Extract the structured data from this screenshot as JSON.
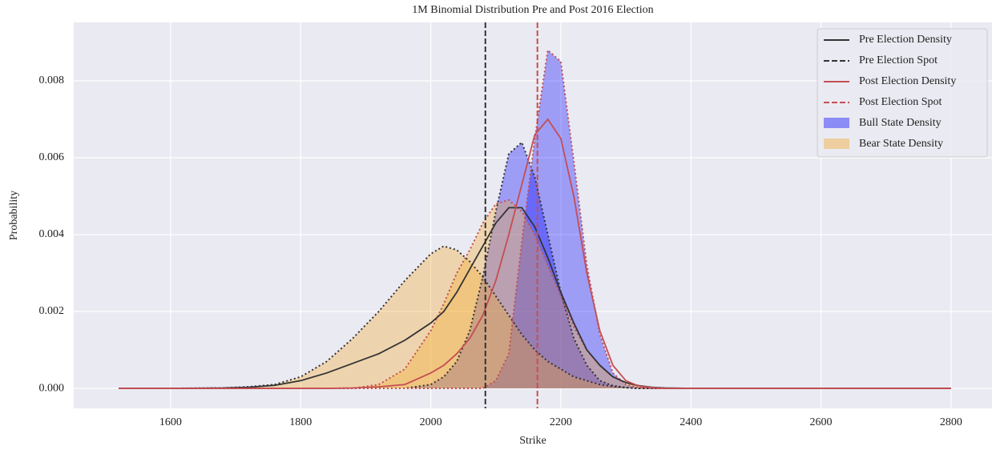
{
  "chart_data": {
    "type": "line",
    "title": "1M Binomial Distribution Pre and Post 2016 Election",
    "x_label": "Strike",
    "y_label": "Probability",
    "x": [
      1520,
      1600,
      1680,
      1720,
      1760,
      1800,
      1840,
      1880,
      1920,
      1960,
      2000,
      2020,
      2040,
      2060,
      2080,
      2100,
      2120,
      2140,
      2160,
      2180,
      2200,
      2220,
      2240,
      2260,
      2280,
      2300,
      2320,
      2340,
      2360,
      2400,
      2500,
      2600,
      2700,
      2800
    ],
    "xlim": [
      1451,
      2863
    ],
    "ylim": [
      -0.00052,
      0.00952
    ],
    "xticks": [
      1600,
      1800,
      2000,
      2200,
      2400,
      2600,
      2800
    ],
    "yticks": [
      {
        "value": 0,
        "label": "0.000"
      },
      {
        "value": 0.002,
        "label": "0.002"
      },
      {
        "value": 0.004,
        "label": "0.004"
      },
      {
        "value": 0.006,
        "label": "0.006"
      },
      {
        "value": 0.008,
        "label": "0.008"
      }
    ],
    "grid": true,
    "legend": "upper right",
    "series": [
      {
        "name": "Pre Election Density",
        "color": "#333333",
        "values": [
          0,
          0,
          1e-05,
          3e-05,
          8e-05,
          0.0002,
          0.0004,
          0.00065,
          0.0009,
          0.00125,
          0.0017,
          0.002,
          0.0025,
          0.0031,
          0.0037,
          0.0043,
          0.0047,
          0.0047,
          0.0042,
          0.0034,
          0.0025,
          0.0017,
          0.001,
          0.0006,
          0.0003,
          0.00015,
          7e-05,
          3e-05,
          1e-05,
          0,
          0,
          0,
          0,
          0
        ]
      },
      {
        "name": "Post Election Density",
        "color": "#c44e52",
        "values": [
          0,
          0,
          0,
          0,
          0,
          0,
          0,
          1e-05,
          4e-05,
          0.0001,
          0.0004,
          0.0006,
          0.0009,
          0.0013,
          0.0019,
          0.0028,
          0.004,
          0.0053,
          0.0066,
          0.007,
          0.0065,
          0.005,
          0.003,
          0.0015,
          0.0006,
          0.0002,
          6e-05,
          2e-05,
          0,
          0,
          0,
          0,
          0,
          0
        ]
      }
    ],
    "spots": [
      {
        "name": "Pre Election Spot",
        "color": "#333333",
        "x": 2084
      },
      {
        "name": "Post Election Spot",
        "color": "#c44e52",
        "x": 2164
      }
    ],
    "areas": [
      {
        "name": "Bull State Density",
        "color": "#0000ff",
        "pre": [
          0,
          0,
          0,
          0,
          0,
          0,
          0,
          0,
          0,
          0,
          0.0001,
          0.0003,
          0.0007,
          0.0015,
          0.0029,
          0.0046,
          0.0061,
          0.0064,
          0.0055,
          0.004,
          0.0025,
          0.0013,
          0.0006,
          0.0002,
          7e-05,
          2e-05,
          0,
          0,
          0,
          0,
          0,
          0,
          0,
          0
        ],
        "post": [
          0,
          0,
          0,
          0,
          0,
          0,
          0,
          0,
          0,
          0,
          0,
          0,
          0,
          0,
          0,
          0.0002,
          0.0009,
          0.0038,
          0.0065,
          0.0088,
          0.0085,
          0.0059,
          0.0032,
          0.0014,
          0.0004,
          0.0001,
          2e-05,
          0,
          0,
          0,
          0,
          0,
          0,
          0
        ]
      },
      {
        "name": "Bear State Density",
        "color": "#f5a623",
        "pre": [
          0,
          0,
          1e-05,
          4e-05,
          0.0001,
          0.0003,
          0.0007,
          0.0013,
          0.002,
          0.0028,
          0.0035,
          0.0037,
          0.0036,
          0.0033,
          0.0029,
          0.0024,
          0.0019,
          0.0014,
          0.001,
          0.0007,
          0.0005,
          0.0003,
          0.0002,
          0.0001,
          5e-05,
          2e-05,
          0,
          0,
          0,
          0,
          0,
          0,
          0,
          0
        ],
        "post": [
          0,
          0,
          0,
          0,
          0,
          0,
          0,
          0,
          0.0001,
          0.0005,
          0.0015,
          0.0022,
          0.003,
          0.0036,
          0.0043,
          0.0048,
          0.0049,
          0.0046,
          0.004,
          0.0032,
          0.0024,
          0.0016,
          0.001,
          0.0006,
          0.0003,
          0.00015,
          6e-05,
          2e-05,
          0,
          0,
          0,
          0,
          0,
          0
        ]
      }
    ]
  }
}
